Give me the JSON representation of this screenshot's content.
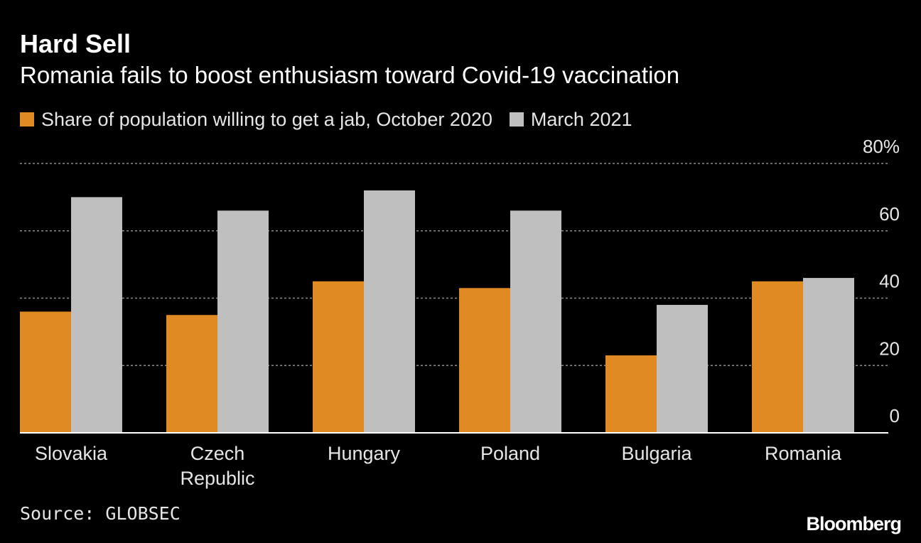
{
  "chart_data": {
    "type": "bar",
    "title": "Hard Sell",
    "subtitle": "Romania fails to boost enthusiasm toward Covid-19 vaccination",
    "categories": [
      [
        "Slovakia"
      ],
      [
        "Czech",
        "Republic"
      ],
      [
        "Hungary"
      ],
      [
        "Poland"
      ],
      [
        "Bulgaria"
      ],
      [
        "Romania"
      ]
    ],
    "series": [
      {
        "name": "Share of population willing to get a jab, October 2020",
        "color": "#e08a23",
        "values": [
          36,
          35,
          45,
          43,
          23,
          45
        ]
      },
      {
        "name": "March 2021",
        "color": "#bfbfbf",
        "values": [
          70,
          66,
          72,
          66,
          38,
          46
        ]
      }
    ],
    "yticks": [
      "0",
      "20",
      "40",
      "60",
      "80%"
    ],
    "ylim": [
      0,
      80
    ],
    "grid": true,
    "legend_position": "top-left",
    "source": "Source: GLOBSEC",
    "brand": "Bloomberg"
  }
}
